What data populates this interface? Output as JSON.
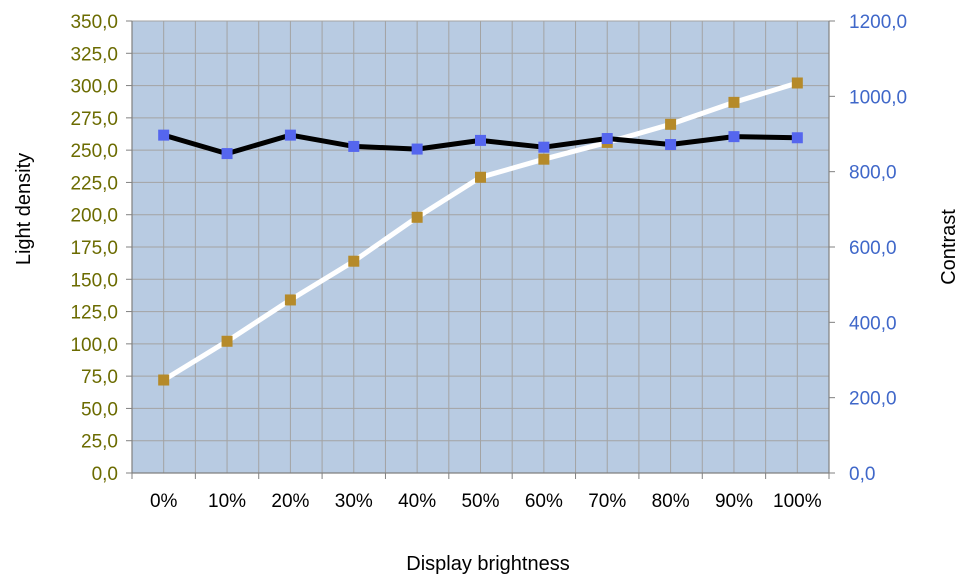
{
  "chart_data": {
    "type": "line",
    "xlabel": "Display brightness",
    "ylabel": "Light density",
    "y2label": "Contrast",
    "categories": [
      "0%",
      "10%",
      "20%",
      "30%",
      "40%",
      "50%",
      "60%",
      "70%",
      "80%",
      "90%",
      "100%"
    ],
    "ylim": [
      0,
      350
    ],
    "y_ticks": [
      "0,0",
      "25,0",
      "50,0",
      "75,0",
      "100,0",
      "125,0",
      "150,0",
      "175,0",
      "200,0",
      "225,0",
      "250,0",
      "275,0",
      "300,0",
      "325,0",
      "350,0"
    ],
    "y2lim": [
      0,
      1200
    ],
    "y2_ticks": [
      "0,0",
      "200,0",
      "400,0",
      "600,0",
      "800,0",
      "1000,0",
      "1200,0"
    ],
    "grid": true,
    "series": [
      {
        "axis": "left",
        "values": [
          72,
          102,
          134,
          164,
          198,
          229,
          243,
          256,
          270,
          287,
          302
        ],
        "line_color": "#ffffff",
        "marker_color": "#b58a2a"
      },
      {
        "axis": "right",
        "values": [
          897,
          848,
          897,
          867,
          860,
          883,
          865,
          888,
          872,
          893,
          890
        ],
        "line_color": "#000000",
        "marker_color": "#5566ee"
      }
    ],
    "colors": {
      "plot_bg": "#b8cbe2",
      "grid": "#a3a3a3",
      "left_tick": "#6b6b00",
      "right_tick": "#3f67c9"
    }
  }
}
